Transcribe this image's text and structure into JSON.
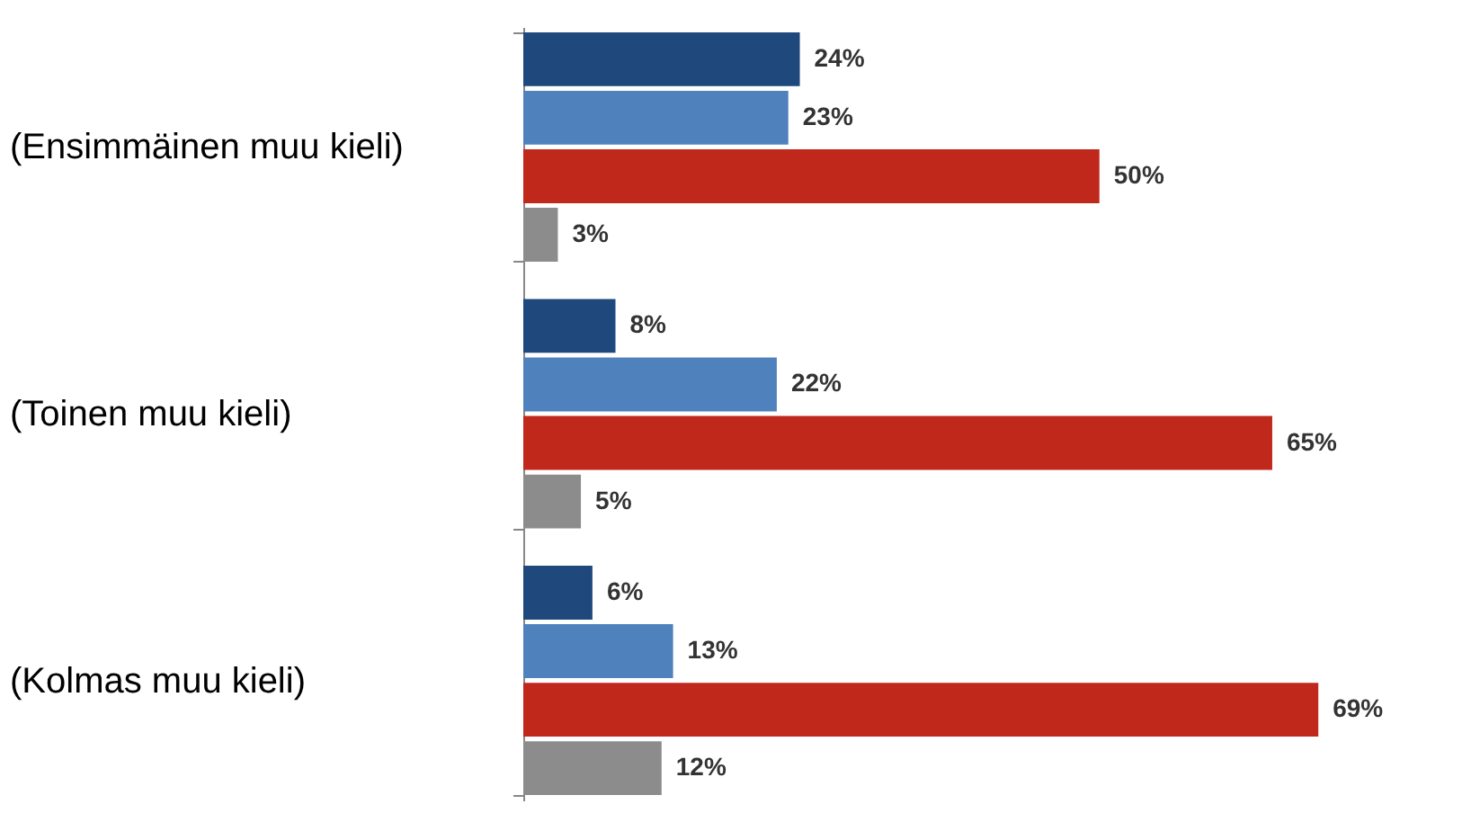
{
  "chart_data": {
    "type": "bar",
    "orientation": "horizontal",
    "categories": [
      "(Ensimmäinen muu kieli)",
      "(Toinen muu kieli)",
      "(Kolmas muu kieli)"
    ],
    "series": [
      {
        "color": "#1f497d",
        "values": [
          24,
          8,
          6
        ],
        "value_labels": [
          "24%",
          "8%",
          "6%"
        ]
      },
      {
        "color": "#4f81bd",
        "values": [
          23,
          22,
          13
        ],
        "value_labels": [
          "23%",
          "22%",
          "13%"
        ]
      },
      {
        "color": "#c0281c",
        "values": [
          50,
          65,
          69
        ],
        "value_labels": [
          "50%",
          "65%",
          "69%"
        ]
      },
      {
        "color": "#8c8c8c",
        "values": [
          3,
          5,
          12
        ],
        "value_labels": [
          "3%",
          "5%",
          "12%"
        ]
      }
    ],
    "grid": false
  }
}
